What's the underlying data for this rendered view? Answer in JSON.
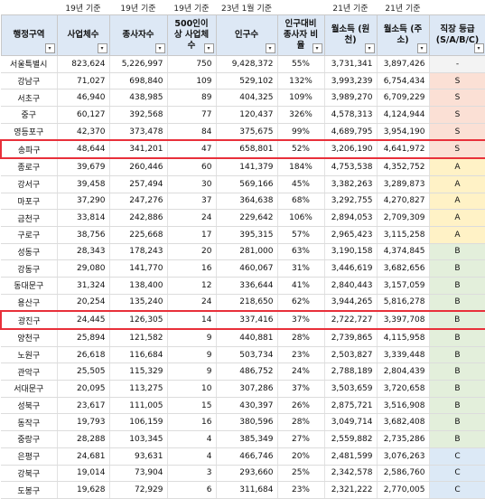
{
  "notes": [
    "",
    "19년 기준",
    "19년 기준",
    "19년 기준",
    "23년 1월 기준",
    "",
    "21년 기준",
    "21년 기준",
    ""
  ],
  "headers": [
    "행정구역",
    "사업체수",
    "종사자수",
    "500인이상 사업체수",
    "인구수",
    "인구대비 종사자 비율",
    "월소득 (원천)",
    "월소득 (주소)",
    "직장 등급 (S/A/B/C)"
  ],
  "filter_glyph": "▾",
  "rows": [
    {
      "cells": [
        "서울특별시",
        "823,624",
        "5,226,997",
        "750",
        "9,428,372",
        "55%",
        "3,731,341",
        "3,897,426",
        "-"
      ],
      "grade": "dash",
      "hl": false
    },
    {
      "cells": [
        "강남구",
        "71,027",
        "698,840",
        "109",
        "529,102",
        "132%",
        "3,993,239",
        "6,754,434",
        "S"
      ],
      "grade": "S",
      "hl": false
    },
    {
      "cells": [
        "서초구",
        "46,940",
        "438,985",
        "89",
        "404,325",
        "109%",
        "3,989,270",
        "6,709,229",
        "S"
      ],
      "grade": "S",
      "hl": false
    },
    {
      "cells": [
        "중구",
        "60,127",
        "392,568",
        "77",
        "120,437",
        "326%",
        "4,578,313",
        "4,124,944",
        "S"
      ],
      "grade": "S",
      "hl": false
    },
    {
      "cells": [
        "영등포구",
        "42,370",
        "373,478",
        "84",
        "375,675",
        "99%",
        "4,689,795",
        "3,954,190",
        "S"
      ],
      "grade": "S",
      "hl": false
    },
    {
      "cells": [
        "송파구",
        "48,644",
        "341,201",
        "47",
        "658,801",
        "52%",
        "3,206,190",
        "4,641,972",
        "S"
      ],
      "grade": "S",
      "hl": true
    },
    {
      "cells": [
        "종로구",
        "39,679",
        "260,446",
        "60",
        "141,379",
        "184%",
        "4,753,538",
        "4,352,752",
        "A"
      ],
      "grade": "A",
      "hl": false
    },
    {
      "cells": [
        "강서구",
        "39,458",
        "257,494",
        "30",
        "569,166",
        "45%",
        "3,382,263",
        "3,289,873",
        "A"
      ],
      "grade": "A",
      "hl": false
    },
    {
      "cells": [
        "마포구",
        "37,290",
        "247,276",
        "37",
        "364,638",
        "68%",
        "3,292,755",
        "4,270,827",
        "A"
      ],
      "grade": "A",
      "hl": false
    },
    {
      "cells": [
        "금천구",
        "33,814",
        "242,886",
        "24",
        "229,642",
        "106%",
        "2,894,053",
        "2,709,309",
        "A"
      ],
      "grade": "A",
      "hl": false
    },
    {
      "cells": [
        "구로구",
        "38,756",
        "225,668",
        "17",
        "395,315",
        "57%",
        "2,965,423",
        "3,115,258",
        "A"
      ],
      "grade": "A",
      "hl": false
    },
    {
      "cells": [
        "성동구",
        "28,343",
        "178,243",
        "20",
        "281,000",
        "63%",
        "3,190,158",
        "4,374,845",
        "B"
      ],
      "grade": "B",
      "hl": false
    },
    {
      "cells": [
        "강동구",
        "29,080",
        "141,770",
        "16",
        "460,067",
        "31%",
        "3,446,619",
        "3,682,656",
        "B"
      ],
      "grade": "B",
      "hl": false
    },
    {
      "cells": [
        "동대문구",
        "31,324",
        "138,400",
        "12",
        "336,644",
        "41%",
        "2,840,443",
        "3,157,059",
        "B"
      ],
      "grade": "B",
      "hl": false
    },
    {
      "cells": [
        "용산구",
        "20,254",
        "135,240",
        "24",
        "218,650",
        "62%",
        "3,944,265",
        "5,816,278",
        "B"
      ],
      "grade": "B",
      "hl": false
    },
    {
      "cells": [
        "광진구",
        "24,445",
        "126,305",
        "14",
        "337,416",
        "37%",
        "2,722,727",
        "3,397,708",
        "B"
      ],
      "grade": "B",
      "hl": true
    },
    {
      "cells": [
        "양천구",
        "25,894",
        "121,582",
        "9",
        "440,881",
        "28%",
        "2,739,865",
        "4,115,958",
        "B"
      ],
      "grade": "B",
      "hl": false
    },
    {
      "cells": [
        "노원구",
        "26,618",
        "116,684",
        "9",
        "503,734",
        "23%",
        "2,503,827",
        "3,339,448",
        "B"
      ],
      "grade": "B",
      "hl": false
    },
    {
      "cells": [
        "관악구",
        "25,505",
        "115,329",
        "9",
        "486,752",
        "24%",
        "2,788,189",
        "2,804,439",
        "B"
      ],
      "grade": "B",
      "hl": false
    },
    {
      "cells": [
        "서대문구",
        "20,095",
        "113,275",
        "10",
        "307,286",
        "37%",
        "3,503,659",
        "3,720,658",
        "B"
      ],
      "grade": "B",
      "hl": false
    },
    {
      "cells": [
        "성북구",
        "23,617",
        "111,005",
        "15",
        "430,397",
        "26%",
        "2,875,721",
        "3,516,908",
        "B"
      ],
      "grade": "B",
      "hl": false
    },
    {
      "cells": [
        "동작구",
        "19,793",
        "106,159",
        "16",
        "380,596",
        "28%",
        "3,049,714",
        "3,682,408",
        "B"
      ],
      "grade": "B",
      "hl": false
    },
    {
      "cells": [
        "중랑구",
        "28,288",
        "103,345",
        "4",
        "385,349",
        "27%",
        "2,559,882",
        "2,735,286",
        "B"
      ],
      "grade": "B",
      "hl": false
    },
    {
      "cells": [
        "은평구",
        "24,681",
        "93,631",
        "4",
        "466,746",
        "20%",
        "2,481,599",
        "3,076,263",
        "C"
      ],
      "grade": "C",
      "hl": false
    },
    {
      "cells": [
        "강북구",
        "19,014",
        "73,904",
        "3",
        "293,660",
        "25%",
        "2,342,578",
        "2,586,760",
        "C"
      ],
      "grade": "C",
      "hl": false
    },
    {
      "cells": [
        "도봉구",
        "19,628",
        "72,929",
        "6",
        "311,684",
        "23%",
        "2,321,222",
        "2,770,005",
        "C"
      ],
      "grade": "C",
      "hl": false
    }
  ]
}
